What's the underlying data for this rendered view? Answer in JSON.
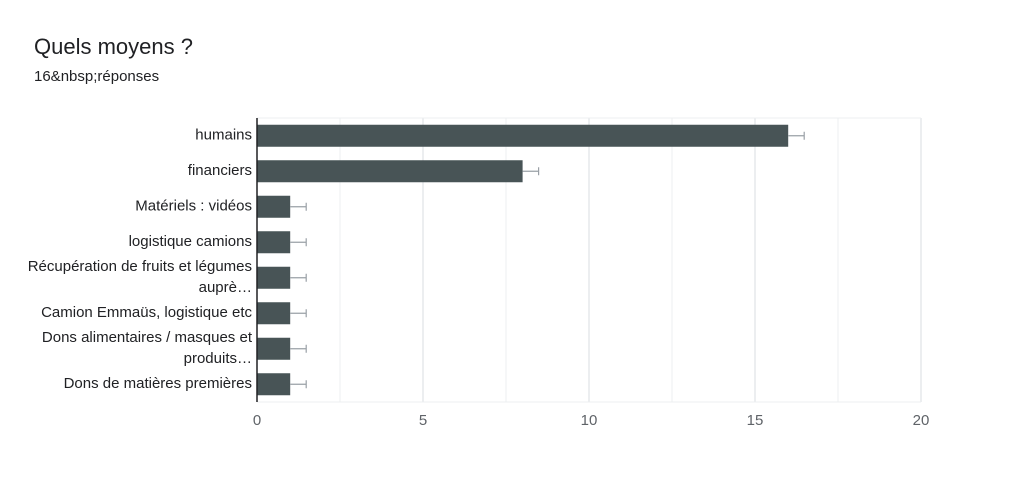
{
  "header": {
    "title": "Quels moyens ?",
    "subtitle": "16&nbsp;réponses"
  },
  "chart_data": {
    "type": "bar",
    "orientation": "horizontal",
    "title": "Quels moyens ?",
    "subtitle": "16&nbsp;réponses",
    "categories": [
      "humains",
      "financiers",
      "Matériels : vidéos",
      "logistique camions",
      "Récupération de fruits et légumes auprè…",
      "Camion Emmaüs, logistique etc",
      "Dons alimentaires / masques et produits…",
      "Dons de matières premières"
    ],
    "category_lines": [
      [
        "humains"
      ],
      [
        "financiers"
      ],
      [
        "Matériels : vidéos"
      ],
      [
        "logistique camions"
      ],
      [
        "Récupération de fruits et légumes",
        "auprè…"
      ],
      [
        "Camion Emmaüs, logistique etc"
      ],
      [
        "Dons alimentaires / masques et",
        "produits…"
      ],
      [
        "Dons de matières premières"
      ]
    ],
    "values": [
      16,
      8,
      1,
      1,
      1,
      1,
      1,
      1
    ],
    "xlim": [
      0,
      20
    ],
    "xticks": [
      0,
      5,
      10,
      15,
      20
    ],
    "grid": true,
    "error_bars": true,
    "bar_color": "#485456"
  }
}
